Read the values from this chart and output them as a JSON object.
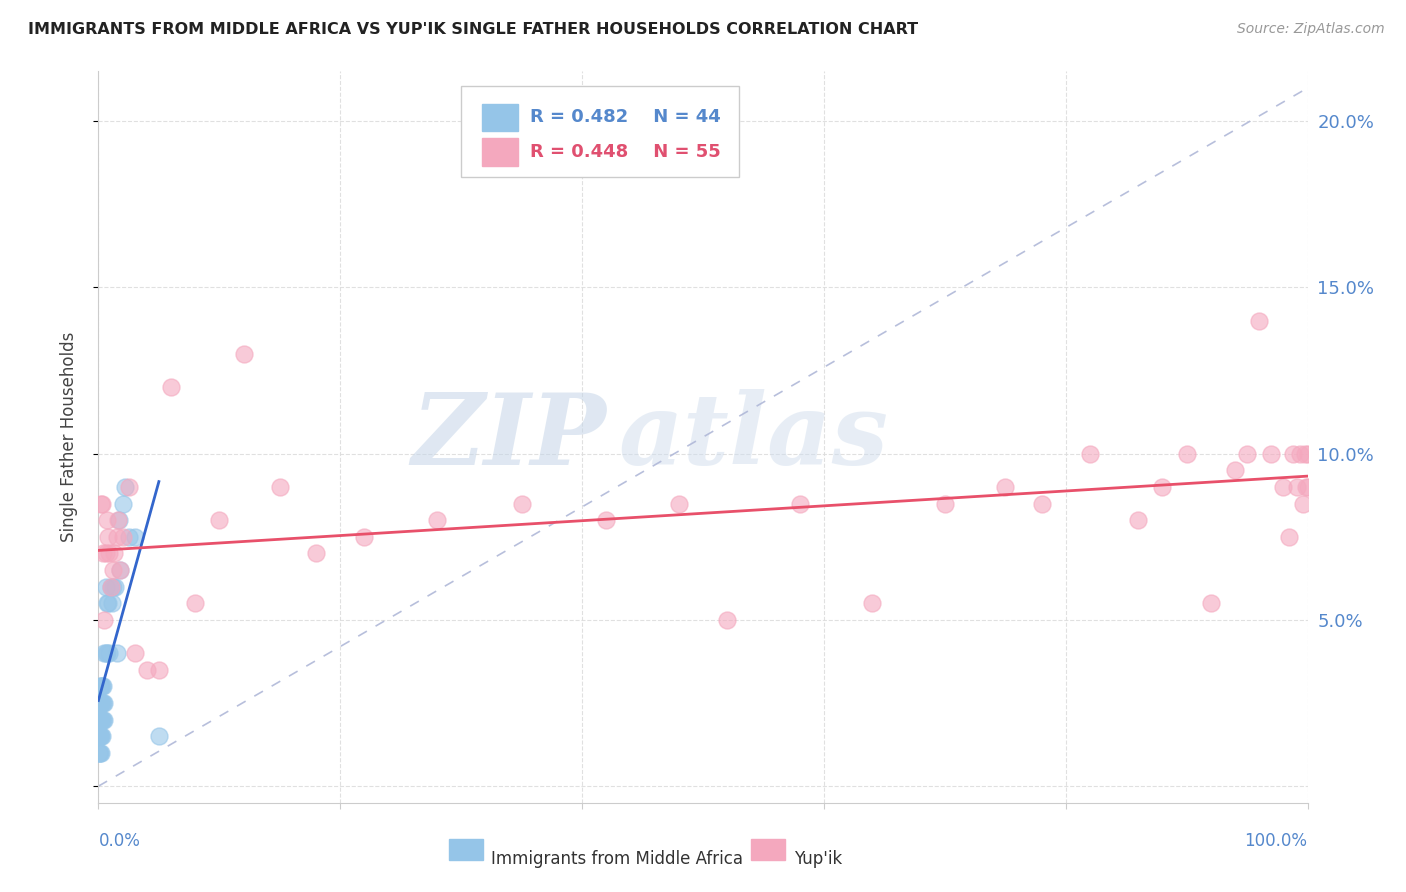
{
  "title": "IMMIGRANTS FROM MIDDLE AFRICA VS YUP'IK SINGLE FATHER HOUSEHOLDS CORRELATION CHART",
  "source": "Source: ZipAtlas.com",
  "ylabel": "Single Father Households",
  "y_ticks": [
    0.0,
    0.05,
    0.1,
    0.15,
    0.2
  ],
  "y_tick_labels_right": [
    "",
    "5.0%",
    "10.0%",
    "15.0%",
    "20.0%"
  ],
  "x_lim": [
    0,
    1.0
  ],
  "y_lim": [
    -0.005,
    0.215
  ],
  "watermark_zip": "ZIP",
  "watermark_atlas": "atlas",
  "legend_blue_r": "R = 0.482",
  "legend_blue_n": "N = 44",
  "legend_pink_r": "R = 0.448",
  "legend_pink_n": "N = 55",
  "legend_blue_label": "Immigrants from Middle Africa",
  "legend_pink_label": "Yup'ik",
  "blue_color": "#95c5e8",
  "pink_color": "#f4a8be",
  "blue_line_color": "#3366cc",
  "pink_line_color": "#e8506a",
  "diag_line_color": "#b0b8d8",
  "tick_color": "#5588cc",
  "blue_scatter_x": [
    0.0003,
    0.0005,
    0.0007,
    0.0008,
    0.001,
    0.001,
    0.001,
    0.001,
    0.001,
    0.0015,
    0.0015,
    0.002,
    0.002,
    0.002,
    0.002,
    0.002,
    0.003,
    0.003,
    0.003,
    0.003,
    0.004,
    0.004,
    0.004,
    0.005,
    0.005,
    0.005,
    0.006,
    0.006,
    0.007,
    0.007,
    0.008,
    0.009,
    0.01,
    0.011,
    0.012,
    0.014,
    0.015,
    0.017,
    0.018,
    0.02,
    0.022,
    0.025,
    0.03,
    0.05
  ],
  "blue_scatter_y": [
    0.01,
    0.015,
    0.01,
    0.02,
    0.01,
    0.015,
    0.02,
    0.025,
    0.03,
    0.015,
    0.02,
    0.01,
    0.015,
    0.02,
    0.025,
    0.03,
    0.015,
    0.02,
    0.025,
    0.03,
    0.02,
    0.025,
    0.03,
    0.02,
    0.025,
    0.04,
    0.04,
    0.06,
    0.04,
    0.055,
    0.055,
    0.04,
    0.06,
    0.055,
    0.06,
    0.06,
    0.04,
    0.08,
    0.065,
    0.085,
    0.09,
    0.075,
    0.075,
    0.015
  ],
  "pink_scatter_x": [
    0.002,
    0.003,
    0.004,
    0.005,
    0.006,
    0.007,
    0.008,
    0.009,
    0.01,
    0.012,
    0.013,
    0.015,
    0.016,
    0.018,
    0.02,
    0.025,
    0.03,
    0.04,
    0.05,
    0.06,
    0.08,
    0.1,
    0.12,
    0.15,
    0.18,
    0.22,
    0.28,
    0.35,
    0.42,
    0.48,
    0.52,
    0.58,
    0.64,
    0.7,
    0.75,
    0.78,
    0.82,
    0.86,
    0.88,
    0.9,
    0.92,
    0.94,
    0.95,
    0.96,
    0.97,
    0.98,
    0.985,
    0.988,
    0.991,
    0.994,
    0.996,
    0.998,
    0.999,
    1.0,
    1.0
  ],
  "pink_scatter_y": [
    0.085,
    0.085,
    0.07,
    0.05,
    0.07,
    0.08,
    0.075,
    0.07,
    0.06,
    0.065,
    0.07,
    0.075,
    0.08,
    0.065,
    0.075,
    0.09,
    0.04,
    0.035,
    0.035,
    0.12,
    0.055,
    0.08,
    0.13,
    0.09,
    0.07,
    0.075,
    0.08,
    0.085,
    0.08,
    0.085,
    0.05,
    0.085,
    0.055,
    0.085,
    0.09,
    0.085,
    0.1,
    0.08,
    0.09,
    0.1,
    0.055,
    0.095,
    0.1,
    0.14,
    0.1,
    0.09,
    0.075,
    0.1,
    0.09,
    0.1,
    0.085,
    0.1,
    0.09,
    0.09,
    0.1
  ]
}
